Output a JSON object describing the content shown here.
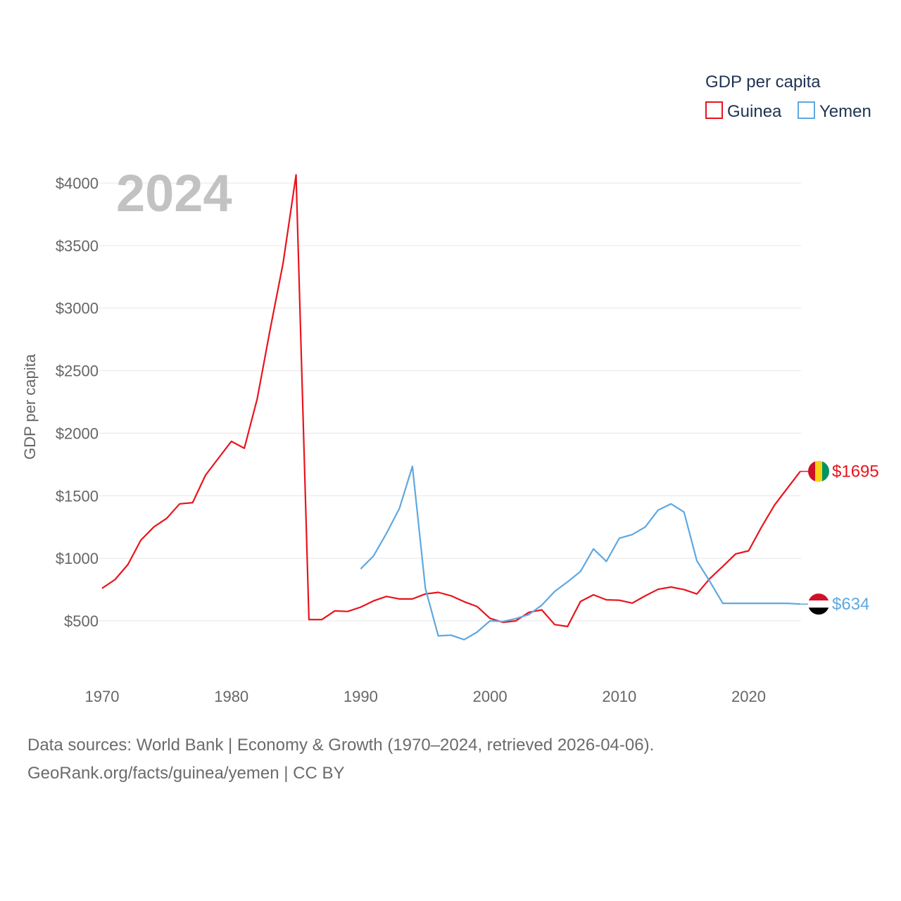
{
  "colors": {
    "guinea": "#e8141c",
    "yemen": "#5fa8e0",
    "guinea_flag": [
      "#ce1126",
      "#fcd116",
      "#009460"
    ],
    "yemen_flag": [
      "#ce1126",
      "#ffffff",
      "#000000"
    ]
  },
  "legend": {
    "title": "GDP per capita",
    "items": [
      {
        "label": "Guinea"
      },
      {
        "label": "Yemen"
      }
    ]
  },
  "year_label": "2024",
  "yaxis_title": "GDP per capita",
  "end_labels": {
    "guinea": "$1695",
    "yemen": "$634"
  },
  "source": {
    "line1": "Data sources: World Bank | Economy & Growth (1970–2024, retrieved 2026-04-06).",
    "line2": "GeoRank.org/facts/guinea/yemen | CC BY"
  },
  "chart_data": {
    "type": "line",
    "title": "GDP per capita",
    "xlabel": "",
    "ylabel": "GDP per capita",
    "xlim": [
      1970,
      2024
    ],
    "ylim": [
      100,
      4050
    ],
    "x_ticks": [
      1970,
      1980,
      1990,
      2000,
      2010,
      2020
    ],
    "y_ticks": [
      {
        "value": 500,
        "label": "$500"
      },
      {
        "value": 1000,
        "label": "$1000"
      },
      {
        "value": 1500,
        "label": "$1500"
      },
      {
        "value": 2000,
        "label": "$2000"
      },
      {
        "value": 2500,
        "label": "$2500"
      },
      {
        "value": 3000,
        "label": "$3000"
      },
      {
        "value": 3500,
        "label": "$3500"
      },
      {
        "value": 4000,
        "label": "$4000"
      }
    ],
    "series": [
      {
        "name": "Guinea",
        "color": "#e8141c",
        "x": [
          1970,
          1971,
          1972,
          1973,
          1974,
          1975,
          1976,
          1977,
          1978,
          1979,
          1980,
          1981,
          1982,
          1983,
          1984,
          1985,
          1986,
          1987,
          1988,
          1989,
          1990,
          1991,
          1992,
          1993,
          1994,
          1995,
          1996,
          1997,
          1998,
          1999,
          2000,
          2001,
          2002,
          2003,
          2004,
          2005,
          2006,
          2007,
          2008,
          2009,
          2010,
          2011,
          2012,
          2013,
          2014,
          2015,
          2016,
          2017,
          2018,
          2019,
          2020,
          2021,
          2022,
          2023,
          2024
        ],
        "values": [
          760,
          830,
          950,
          1145,
          1250,
          1320,
          1435,
          1445,
          1665,
          1800,
          1935,
          1880,
          2275,
          2830,
          3360,
          4065,
          510,
          510,
          580,
          575,
          610,
          660,
          695,
          675,
          675,
          715,
          728,
          700,
          653,
          615,
          520,
          488,
          500,
          568,
          588,
          470,
          455,
          655,
          708,
          668,
          665,
          642,
          700,
          752,
          770,
          750,
          715,
          838,
          935,
          1035,
          1060,
          1250,
          1425,
          1560,
          1695
        ]
      },
      {
        "name": "Yemen",
        "color": "#5fa8e0",
        "x": [
          1990,
          1991,
          1992,
          1993,
          1994,
          1995,
          1996,
          1997,
          1998,
          1999,
          2000,
          2001,
          2002,
          2003,
          2004,
          2005,
          2006,
          2007,
          2008,
          2009,
          2010,
          2011,
          2012,
          2013,
          2014,
          2015,
          2016,
          2017,
          2018,
          2019,
          2020,
          2021,
          2022,
          2023,
          2024
        ],
        "values": [
          915,
          1020,
          1200,
          1400,
          1735,
          760,
          380,
          385,
          350,
          410,
          500,
          495,
          518,
          550,
          625,
          735,
          812,
          895,
          1075,
          975,
          1160,
          1190,
          1250,
          1385,
          1435,
          1370,
          980,
          815,
          640,
          640,
          640,
          640,
          640,
          640,
          634
        ]
      }
    ]
  }
}
